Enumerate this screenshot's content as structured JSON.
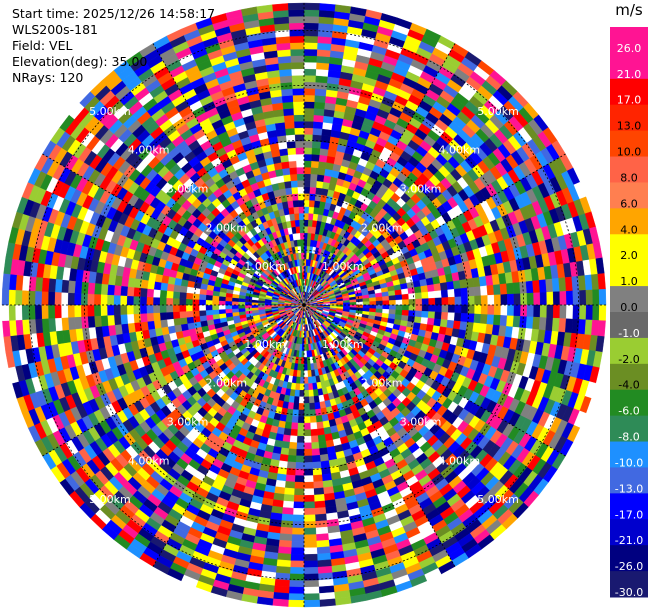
{
  "info": {
    "start_time": "Start time: 2025/12/26 14:58:17",
    "instrument": "WLS200s-181",
    "field": "Field: VEL",
    "elevation": "Elevation(deg): 35.00",
    "nrays": "NRays: 120"
  },
  "chart_data": {
    "type": "heatmap",
    "projection": "polar-ppi",
    "title": "",
    "field": "VEL",
    "nrays": 120,
    "range_rings_labels": [
      "1.00km",
      "2.00km",
      "3.00km",
      "4.00km",
      "5.00km"
    ],
    "range_rings_km": [
      1,
      2,
      3,
      4,
      5
    ],
    "max_range_km": 5.5,
    "grid": true,
    "colorbar": {
      "unit": "m/s",
      "tick_labels": [
        "26.0",
        "21.0",
        "17.0",
        "13.0",
        "10.0",
        "8.0",
        "6.0",
        "4.0",
        "2.0",
        "1.0",
        "0.0",
        "-1.0",
        "-2.0",
        "-4.0",
        "-6.0",
        "-8.0",
        "-10.0",
        "-13.0",
        "-17.0",
        "-21.0",
        "-26.0",
        "-30.0"
      ],
      "colors": [
        "#ff1493",
        "#ff1493",
        "#ff0000",
        "#ff2400",
        "#ff4500",
        "#ff6347",
        "#ff7f50",
        "#ffa500",
        "#ffff00",
        "#ffff00",
        "#808080",
        "#696969",
        "#9acd32",
        "#6b8e23",
        "#228b22",
        "#2e8b57",
        "#1e90ff",
        "#4169e1",
        "#0000ff",
        "#0000cd",
        "#000080",
        "#191970"
      ]
    }
  }
}
